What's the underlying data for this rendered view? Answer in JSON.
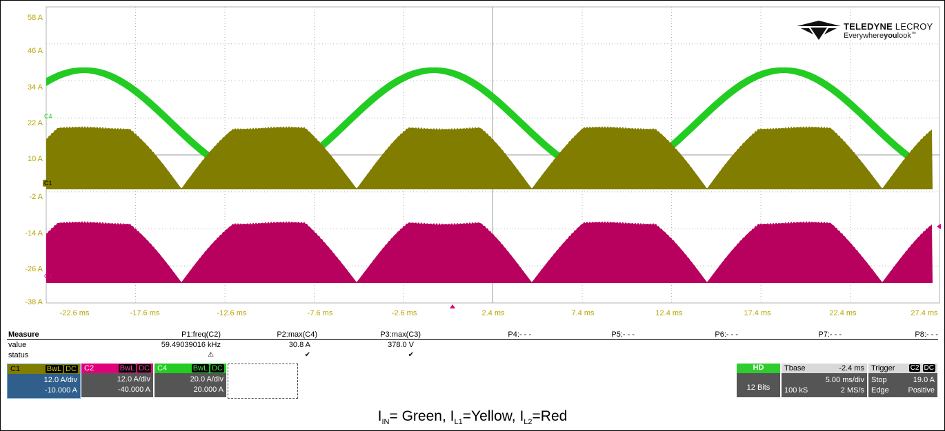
{
  "scope": {
    "y_ticks": [
      "58 A",
      "46 A",
      "34 A",
      "22 A",
      "10 A",
      "-2 A",
      "-14 A",
      "-26 A",
      "-38 A"
    ],
    "x_ticks": [
      "-22.6 ms",
      "-17.6 ms",
      "-12.6 ms",
      "-7.6 ms",
      "-2.6 ms",
      "2.4 ms",
      "7.4 ms",
      "12.4 ms",
      "17.4 ms",
      "22.4 ms",
      "27.4 ms"
    ],
    "marker_c1": "C1",
    "marker_c2": "C2",
    "marker_c4": "C4",
    "colors": {
      "c1": "#807d00",
      "c2": "#b8005e",
      "c4": "#22cc22",
      "grid": "#b0b0b0",
      "tick": "#b5a400"
    },
    "waveforms": [
      {
        "channel": "C4",
        "name": "I_IN",
        "shape": "sine",
        "period_ms": 16.8
      },
      {
        "channel": "C1",
        "name": "I_L1",
        "shape": "rectified-sine",
        "period_ms": 10
      },
      {
        "channel": "C2",
        "name": "I_L2",
        "shape": "rectified-sine",
        "period_ms": 10
      }
    ]
  },
  "logo": {
    "brand_bold": "TELEDYNE",
    "brand_thin": " LECROY",
    "tag_a": "Everywhere",
    "tag_b": "you",
    "tag_c": "look",
    "tm": "™"
  },
  "measure": {
    "title": "Measure",
    "row_value": "value",
    "row_status": "status",
    "columns": [
      {
        "name": "P1:freq(C2)",
        "value": "59.49039016 kHz",
        "status": "⚠"
      },
      {
        "name": "P2:max(C4)",
        "value": "30.8 A",
        "status": "✔"
      },
      {
        "name": "P3:max(C3)",
        "value": "378.0 V",
        "status": "✔"
      },
      {
        "name": "P4:- - -",
        "value": "",
        "status": ""
      },
      {
        "name": "P5:- - -",
        "value": "",
        "status": ""
      },
      {
        "name": "P6:- - -",
        "value": "",
        "status": ""
      },
      {
        "name": "P7:- - -",
        "value": "",
        "status": ""
      },
      {
        "name": "P8:- - -",
        "value": "",
        "status": ""
      }
    ]
  },
  "channels": [
    {
      "name": "C1",
      "bwl": "BwL",
      "dc": "DC",
      "vdiv": "12.0 A/div",
      "offset": "-10.000 A"
    },
    {
      "name": "C2",
      "bwl": "BwL",
      "dc": "DC",
      "vdiv": "12.0 A/div",
      "offset": "-40.000 A"
    },
    {
      "name": "C4",
      "bwl": "BwL",
      "dc": "DC",
      "vdiv": "20.0 A/div",
      "offset": "20.000 A"
    }
  ],
  "hd": {
    "label": "HD",
    "bits": "12 Bits"
  },
  "timebase": {
    "label": "Tbase",
    "delay": "-2.4 ms",
    "tdiv": "5.00 ms/div",
    "samples": "100 kS",
    "rate": "2 MS/s"
  },
  "trigger": {
    "label": "Trigger",
    "src": "C2",
    "cpl": "DC",
    "mode": "Stop",
    "level": "19.0 A",
    "type": "Edge",
    "slope": "Positive"
  },
  "caption": {
    "i": "I",
    "in_sub": "IN",
    "green": "= Green, ",
    "l1_sub": "L1",
    "yellow": "=Yellow, ",
    "l2_sub": "L2",
    "red": "=Red"
  }
}
